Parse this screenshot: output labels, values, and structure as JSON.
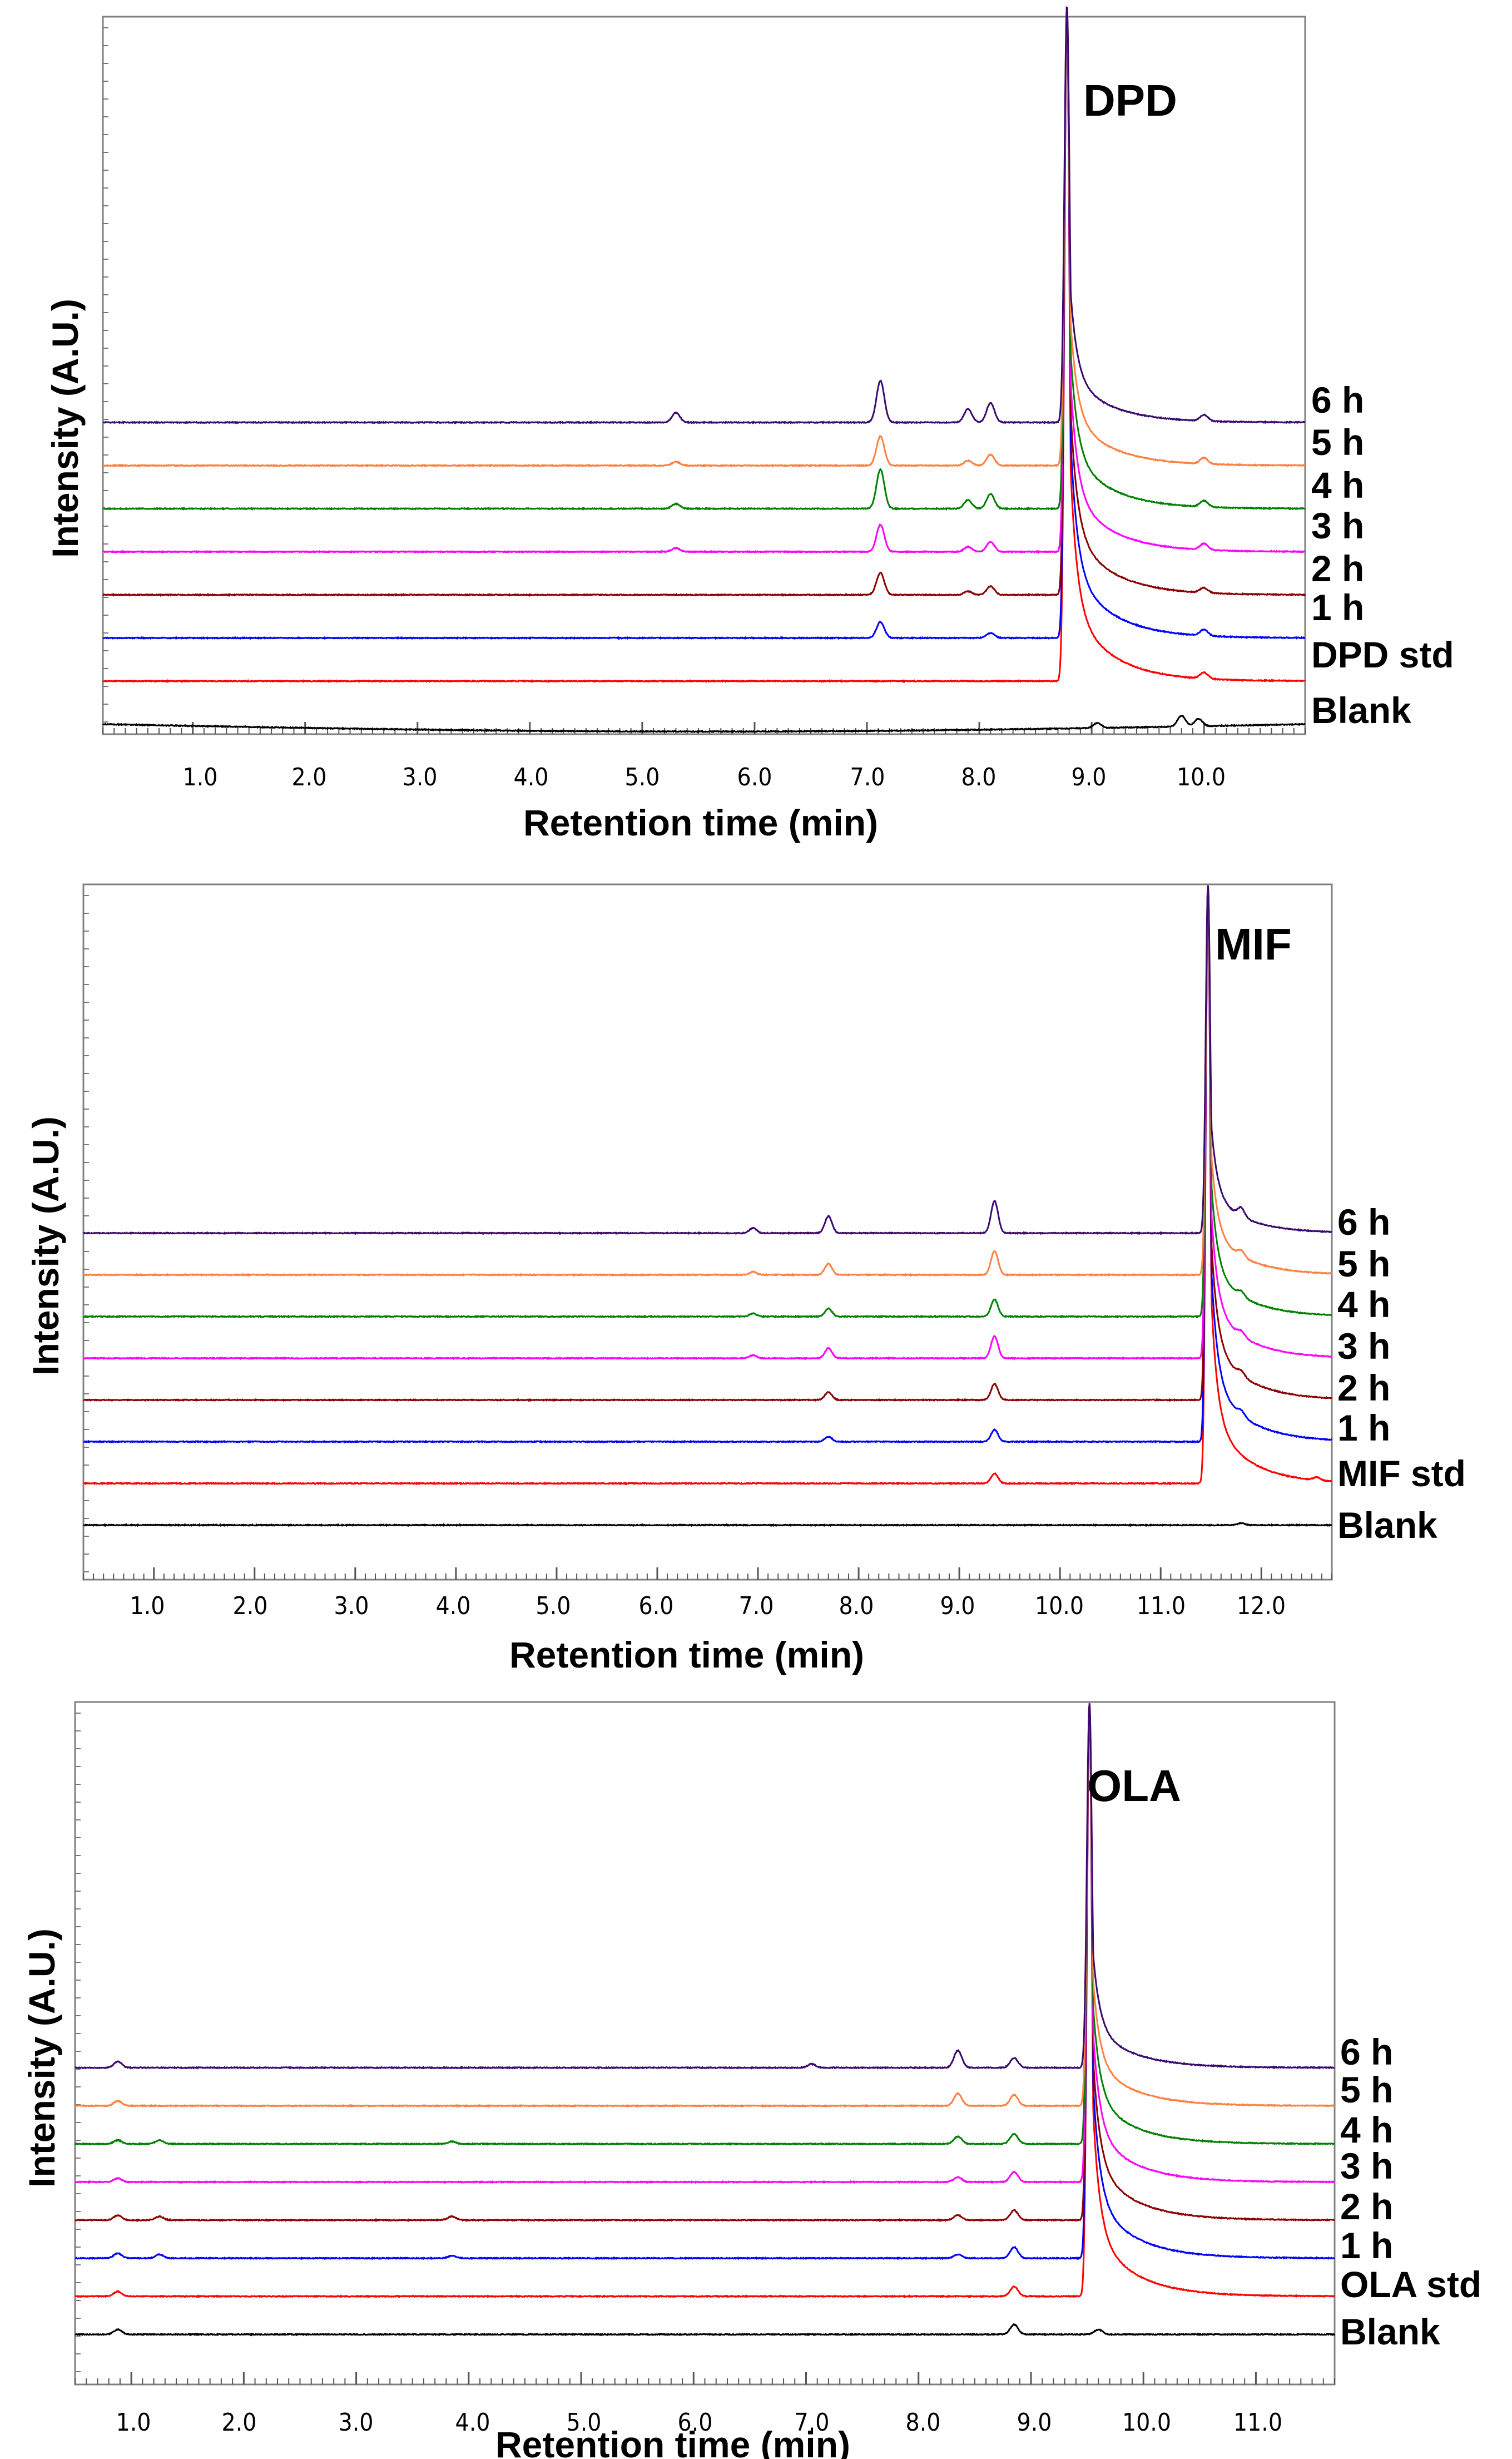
{
  "chart_data": [
    {
      "type": "line",
      "title": "DPD",
      "xlabel": "Retention time (min)",
      "ylabel": "Intensity (A.U.)",
      "xlim": [
        0.2,
        10.9
      ],
      "xticks": [
        "1.0",
        "2.0",
        "3.0",
        "4.0",
        "5.0",
        "6.0",
        "7.0",
        "8.0",
        "9.0",
        "10.0"
      ],
      "main_peak_rt": 8.78,
      "legend_order_bottom_to_top": [
        "Blank",
        "DPD std",
        "1 h",
        "2 h",
        "3 h",
        "4 h",
        "5 h",
        "6 h"
      ],
      "series": [
        {
          "name": "Blank",
          "color": "#000000",
          "peaks": [
            [
              9.05,
              0.4
            ],
            [
              9.8,
              0.9
            ],
            [
              9.95,
              0.6
            ]
          ],
          "main": 0,
          "drift": -0.6
        },
        {
          "name": "DPD std",
          "color": "#ff0000",
          "peaks": [
            [
              10.0,
              0.5
            ]
          ],
          "main": 1,
          "drift": 0
        },
        {
          "name": "1 h",
          "color": "#0000ff",
          "peaks": [
            [
              7.12,
              1.3
            ],
            [
              8.1,
              0.4
            ],
            [
              10.0,
              0.5
            ]
          ],
          "main": 1,
          "drift": 0
        },
        {
          "name": "2 h",
          "color": "#8b0000",
          "peaks": [
            [
              7.12,
              1.8
            ],
            [
              7.9,
              0.3
            ],
            [
              8.1,
              0.7
            ],
            [
              10.0,
              0.4
            ]
          ],
          "main": 1,
          "drift": 0
        },
        {
          "name": "3 h",
          "color": "#ff00ff",
          "peaks": [
            [
              5.3,
              0.3
            ],
            [
              7.12,
              2.2
            ],
            [
              7.9,
              0.4
            ],
            [
              8.1,
              0.8
            ],
            [
              10.0,
              0.5
            ]
          ],
          "main": 1,
          "drift": 0
        },
        {
          "name": "4 h",
          "color": "#008000",
          "peaks": [
            [
              5.3,
              0.4
            ],
            [
              7.12,
              3.2
            ],
            [
              7.9,
              0.7
            ],
            [
              8.1,
              1.2
            ],
            [
              10.0,
              0.5
            ]
          ],
          "main": 1,
          "drift": 0
        },
        {
          "name": "5 h",
          "color": "#ff8040",
          "peaks": [
            [
              5.3,
              0.3
            ],
            [
              7.12,
              2.4
            ],
            [
              7.9,
              0.4
            ],
            [
              8.1,
              0.9
            ],
            [
              10.0,
              0.5
            ]
          ],
          "main": 1,
          "drift": 0
        },
        {
          "name": "6 h",
          "color": "#3b0a6e",
          "peaks": [
            [
              5.3,
              0.8
            ],
            [
              7.12,
              3.4
            ],
            [
              7.9,
              1.1
            ],
            [
              8.1,
              1.6
            ],
            [
              10.0,
              0.5
            ]
          ],
          "main": 1,
          "drift": 0
        }
      ]
    },
    {
      "type": "line",
      "title": "MIF",
      "xlabel": "Retention time (min)",
      "ylabel": "Intensity (A.U.)",
      "xlim": [
        0.3,
        12.7
      ],
      "xticks": [
        "1.0",
        "2.0",
        "3.0",
        "4.0",
        "5.0",
        "6.0",
        "7.0",
        "8.0",
        "9.0",
        "10.0",
        "11.0",
        "12.0"
      ],
      "main_peak_rt": 11.47,
      "legend_order_bottom_to_top": [
        "Blank",
        "MIF std",
        "1 h",
        "2 h",
        "3 h",
        "4 h",
        "5 h",
        "6 h"
      ],
      "series": [
        {
          "name": "Blank",
          "color": "#000000",
          "peaks": [
            [
              11.8,
              0.2
            ]
          ],
          "main": 0,
          "drift": 0
        },
        {
          "name": "MIF std",
          "color": "#ff0000",
          "peaks": [
            [
              9.35,
              1.0
            ],
            [
              12.55,
              0.3
            ]
          ],
          "main": 1,
          "drift": 0
        },
        {
          "name": "1 h",
          "color": "#0000ff",
          "peaks": [
            [
              7.7,
              0.5
            ],
            [
              9.35,
              1.2
            ],
            [
              11.8,
              0.5
            ]
          ],
          "main": 1,
          "drift": 0
        },
        {
          "name": "2 h",
          "color": "#8b0000",
          "peaks": [
            [
              7.7,
              0.8
            ],
            [
              9.35,
              1.6
            ],
            [
              11.8,
              0.5
            ]
          ],
          "main": 1,
          "drift": 0
        },
        {
          "name": "3 h",
          "color": "#ff00ff",
          "peaks": [
            [
              6.95,
              0.3
            ],
            [
              7.7,
              1.0
            ],
            [
              9.35,
              2.2
            ],
            [
              11.8,
              0.5
            ]
          ],
          "main": 1,
          "drift": 0
        },
        {
          "name": "4 h",
          "color": "#008000",
          "peaks": [
            [
              6.95,
              0.3
            ],
            [
              7.7,
              0.8
            ],
            [
              9.35,
              1.7
            ],
            [
              11.8,
              0.5
            ]
          ],
          "main": 1,
          "drift": 0
        },
        {
          "name": "5 h",
          "color": "#ff8040",
          "peaks": [
            [
              6.95,
              0.3
            ],
            [
              7.7,
              1.1
            ],
            [
              9.35,
              2.4
            ],
            [
              11.8,
              0.6
            ]
          ],
          "main": 1,
          "drift": 0
        },
        {
          "name": "6 h",
          "color": "#3b0a6e",
          "peaks": [
            [
              6.95,
              0.5
            ],
            [
              7.7,
              1.7
            ],
            [
              9.35,
              3.2
            ],
            [
              11.8,
              0.9
            ]
          ],
          "main": 1,
          "drift": 0
        }
      ]
    },
    {
      "type": "line",
      "title": "OLA",
      "xlabel": "Retention time (min)",
      "ylabel": "Intensity (A.U.)",
      "xlim": [
        0.5,
        11.7
      ],
      "xticks": [
        "1.0",
        "2.0",
        "3.0",
        "4.0",
        "5.0",
        "6.0",
        "7.0",
        "8.0",
        "9.0",
        "10.0",
        "11.0"
      ],
      "main_peak_rt": 9.52,
      "legend_order_bottom_to_top": [
        "Blank",
        "OLA std",
        "1 h",
        "2 h",
        "3 h",
        "4 h",
        "5 h",
        "6 h"
      ],
      "series": [
        {
          "name": "Blank",
          "color": "#000000",
          "peaks": [
            [
              0.88,
              0.4
            ],
            [
              8.85,
              0.8
            ],
            [
              9.6,
              0.4
            ]
          ],
          "main": 0,
          "drift": 0
        },
        {
          "name": "OLA std",
          "color": "#ff0000",
          "peaks": [
            [
              0.88,
              0.4
            ],
            [
              8.85,
              0.8
            ]
          ],
          "main": 1,
          "drift": 0
        },
        {
          "name": "1 h",
          "color": "#0000ff",
          "peaks": [
            [
              0.88,
              0.4
            ],
            [
              1.25,
              0.3
            ],
            [
              3.85,
              0.2
            ],
            [
              8.35,
              0.3
            ],
            [
              8.85,
              0.9
            ]
          ],
          "main": 1,
          "drift": 0
        },
        {
          "name": "2 h",
          "color": "#8b0000",
          "peaks": [
            [
              0.88,
              0.4
            ],
            [
              1.25,
              0.3
            ],
            [
              3.85,
              0.3
            ],
            [
              8.35,
              0.4
            ],
            [
              8.85,
              0.8
            ]
          ],
          "main": 1,
          "drift": 0
        },
        {
          "name": "3 h",
          "color": "#ff00ff",
          "peaks": [
            [
              0.88,
              0.3
            ],
            [
              8.35,
              0.4
            ],
            [
              8.85,
              0.8
            ]
          ],
          "main": 1,
          "drift": 0
        },
        {
          "name": "4 h",
          "color": "#008000",
          "peaks": [
            [
              0.88,
              0.3
            ],
            [
              1.25,
              0.3
            ],
            [
              3.85,
              0.2
            ],
            [
              8.35,
              0.6
            ],
            [
              8.85,
              0.8
            ]
          ],
          "main": 1,
          "drift": 0
        },
        {
          "name": "5 h",
          "color": "#ff8040",
          "peaks": [
            [
              0.88,
              0.4
            ],
            [
              8.35,
              1.0
            ],
            [
              8.85,
              0.9
            ]
          ],
          "main": 1,
          "drift": 0
        },
        {
          "name": "6 h",
          "color": "#3b0a6e",
          "peaks": [
            [
              0.88,
              0.5
            ],
            [
              7.05,
              0.3
            ],
            [
              8.35,
              1.4
            ],
            [
              8.85,
              0.8
            ]
          ],
          "main": 1,
          "drift": 0
        }
      ]
    }
  ]
}
